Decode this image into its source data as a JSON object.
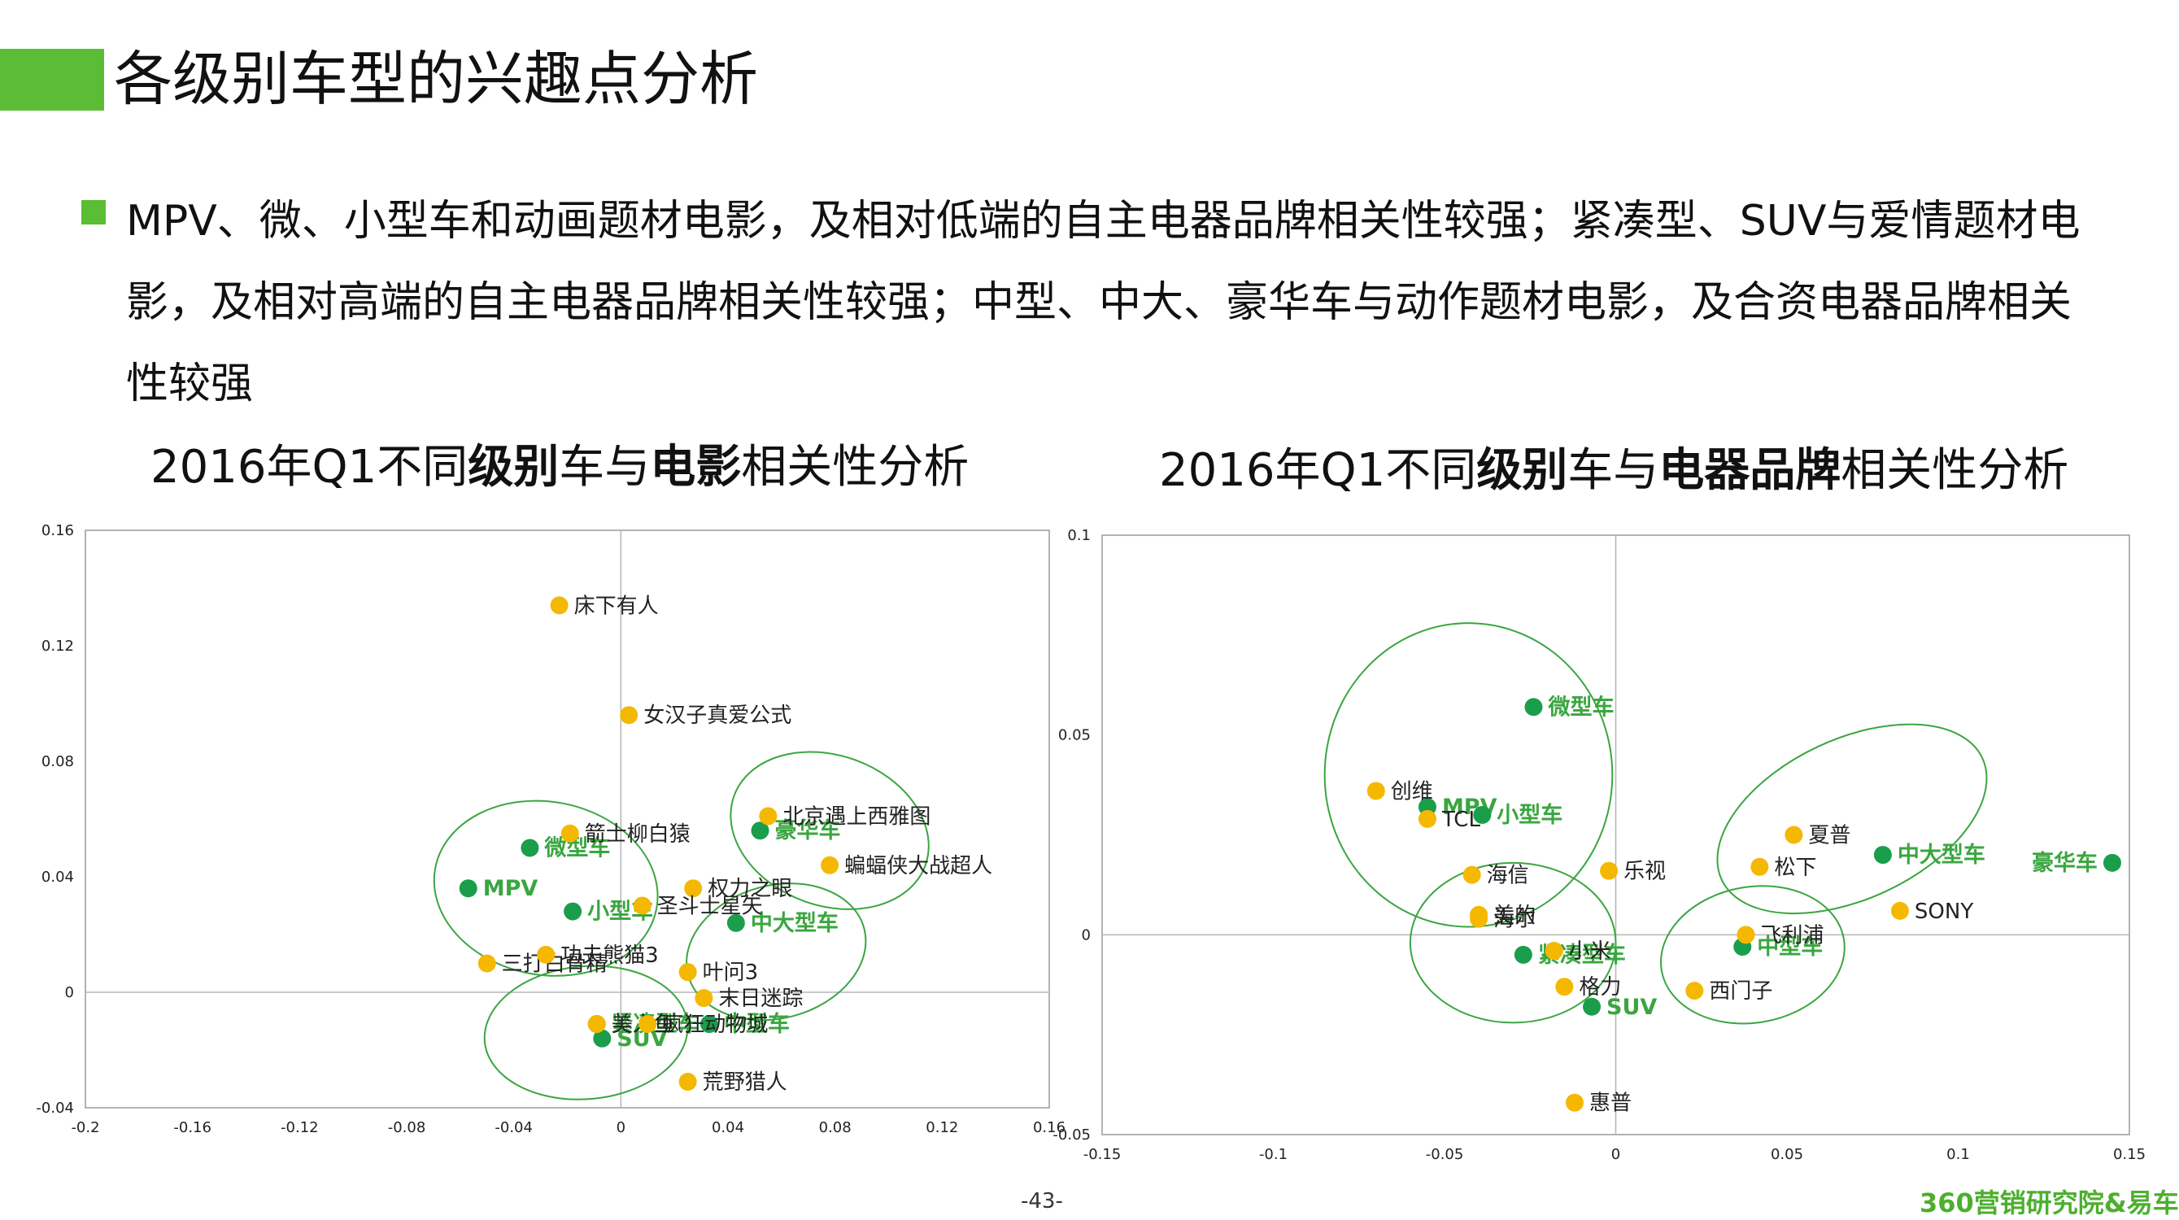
{
  "page": {
    "title": "各级别车型的兴趣点分析",
    "bullet": "MPV、微、小型车和动画题材电影，及相对低端的自主电器品牌相关性较强；紧凑型、SUV与爱情题材电影，及相对高端的自主电器品牌相关性较强；中型、中大、豪华车与动作题材电影，及合资电器品牌相关性较强",
    "page_number": "-43-",
    "footer": "360营销研究院&易车"
  },
  "colors": {
    "accent": "#5bbd35",
    "car_point": "#1a9e4b",
    "car_label": "#3aa640",
    "item_point": "#f5b800",
    "ellipse": "#3aa640"
  },
  "chart_data": [
    {
      "type": "scatter",
      "title_parts": [
        "2016年Q1不同",
        "级别",
        "车与",
        "电影",
        "相关性分析"
      ],
      "xlim": [
        -0.2,
        0.16
      ],
      "ylim": [
        -0.04,
        0.16
      ],
      "x_ticks": [
        "-0.2",
        "-0.16",
        "-0.12",
        "-0.08",
        "-0.04",
        "0",
        "0.04",
        "0.08",
        "0.12",
        "0.16"
      ],
      "y_ticks": [
        "0.16",
        "0.12",
        "0.08",
        "0.04",
        "0",
        "-0.04"
      ],
      "grid": false,
      "series": [
        {
          "kind": "car",
          "points": [
            {
              "label": "MPV",
              "x": -0.057,
              "y": 0.036
            },
            {
              "label": "微型车",
              "x": -0.034,
              "y": 0.05
            },
            {
              "label": "小型车",
              "x": -0.018,
              "y": 0.028
            },
            {
              "label": "豪华车",
              "x": 0.052,
              "y": 0.056
            },
            {
              "label": "中大型车",
              "x": 0.043,
              "y": 0.024
            },
            {
              "label": "中型车",
              "x": 0.033,
              "y": -0.011
            },
            {
              "label": "紧凑型车",
              "x": -0.009,
              "y": -0.011
            },
            {
              "label": "SUV",
              "x": -0.007,
              "y": -0.016
            }
          ]
        },
        {
          "kind": "item",
          "points": [
            {
              "label": "床下有人",
              "x": -0.023,
              "y": 0.134
            },
            {
              "label": "女汉子真爱公式",
              "x": 0.003,
              "y": 0.096
            },
            {
              "label": "北京遇上西雅图",
              "x": 0.055,
              "y": 0.061
            },
            {
              "label": "箭士柳白猿",
              "x": -0.019,
              "y": 0.055
            },
            {
              "label": "蝙蝠侠大战超人",
              "x": 0.078,
              "y": 0.044
            },
            {
              "label": "权力之眼",
              "x": 0.027,
              "y": 0.036
            },
            {
              "label": "圣斗士星矢",
              "x": 0.008,
              "y": 0.03
            },
            {
              "label": "三打白骨精",
              "x": -0.05,
              "y": 0.01
            },
            {
              "label": "功夫熊猫3",
              "x": -0.028,
              "y": 0.013
            },
            {
              "label": "叶问3",
              "x": 0.025,
              "y": 0.007
            },
            {
              "label": "末日迷踪",
              "x": 0.031,
              "y": -0.002
            },
            {
              "label": "美人鱼",
              "x": -0.009,
              "y": -0.011
            },
            {
              "label": "疯狂动物城",
              "x": 0.01,
              "y": -0.011
            },
            {
              "label": "荒野猎人",
              "x": 0.025,
              "y": -0.031
            }
          ]
        }
      ],
      "clusters": [
        {
          "cx": -0.028,
          "cy": 0.036,
          "rx": 0.042,
          "ry": 0.03,
          "rot": 10
        },
        {
          "cx": 0.078,
          "cy": 0.056,
          "rx": 0.038,
          "ry": 0.026,
          "rot": 20
        },
        {
          "cx": 0.058,
          "cy": 0.014,
          "rx": 0.034,
          "ry": 0.023,
          "rot": -15
        },
        {
          "cx": -0.013,
          "cy": -0.014,
          "rx": 0.038,
          "ry": 0.023,
          "rot": -5
        }
      ]
    },
    {
      "type": "scatter",
      "title_parts": [
        "2016年Q1不同",
        "级别",
        "车与",
        "电器品牌",
        "相关性分析"
      ],
      "xlim": [
        -0.15,
        0.15
      ],
      "ylim": [
        -0.05,
        0.1
      ],
      "x_ticks": [
        "-0.15",
        "-0.1",
        "-0.05",
        "0",
        "0.05",
        "0.1",
        "0.15"
      ],
      "y_ticks": [
        "0.1",
        "0.05",
        "0",
        "-0.05"
      ],
      "grid": false,
      "series": [
        {
          "kind": "car",
          "points": [
            {
              "label": "微型车",
              "x": -0.024,
              "y": 0.057
            },
            {
              "label": "MPV",
              "x": -0.055,
              "y": 0.032
            },
            {
              "label": "小型车",
              "x": -0.039,
              "y": 0.03
            },
            {
              "label": "紧凑型车",
              "x": -0.027,
              "y": -0.005
            },
            {
              "label": "SUV",
              "x": -0.007,
              "y": -0.018
            },
            {
              "label": "中大型车",
              "x": 0.078,
              "y": 0.02
            },
            {
              "label": "豪华车",
              "x": 0.145,
              "y": 0.018
            },
            {
              "label": "中型车",
              "x": 0.037,
              "y": -0.003
            }
          ]
        },
        {
          "kind": "item",
          "points": [
            {
              "label": "创维",
              "x": -0.07,
              "y": 0.036
            },
            {
              "label": "TCL",
              "x": -0.055,
              "y": 0.029
            },
            {
              "label": "海信",
              "x": -0.042,
              "y": 0.015
            },
            {
              "label": "美的",
              "x": -0.04,
              "y": 0.005
            },
            {
              "label": "海尔",
              "x": -0.04,
              "y": 0.004
            },
            {
              "label": "乐视",
              "x": -0.002,
              "y": 0.016
            },
            {
              "label": "小米",
              "x": -0.018,
              "y": -0.004
            },
            {
              "label": "格力",
              "x": -0.015,
              "y": -0.013
            },
            {
              "label": "惠普",
              "x": -0.012,
              "y": -0.042
            },
            {
              "label": "夏普",
              "x": 0.052,
              "y": 0.025
            },
            {
              "label": "松下",
              "x": 0.042,
              "y": 0.017
            },
            {
              "label": "SONY",
              "x": 0.083,
              "y": 0.006
            },
            {
              "label": "飞利浦",
              "x": 0.038,
              "y": 0.0
            },
            {
              "label": "西门子",
              "x": 0.023,
              "y": -0.014
            }
          ]
        }
      ],
      "clusters": [
        {
          "cx": -0.043,
          "cy": 0.04,
          "rx": 0.042,
          "ry": 0.038,
          "rot": 0
        },
        {
          "cx": -0.03,
          "cy": -0.002,
          "rx": 0.03,
          "ry": 0.02,
          "rot": 0
        },
        {
          "cx": 0.069,
          "cy": 0.029,
          "rx": 0.042,
          "ry": 0.02,
          "rot": -25
        },
        {
          "cx": 0.04,
          "cy": -0.005,
          "rx": 0.027,
          "ry": 0.017,
          "rot": -10
        }
      ]
    }
  ]
}
